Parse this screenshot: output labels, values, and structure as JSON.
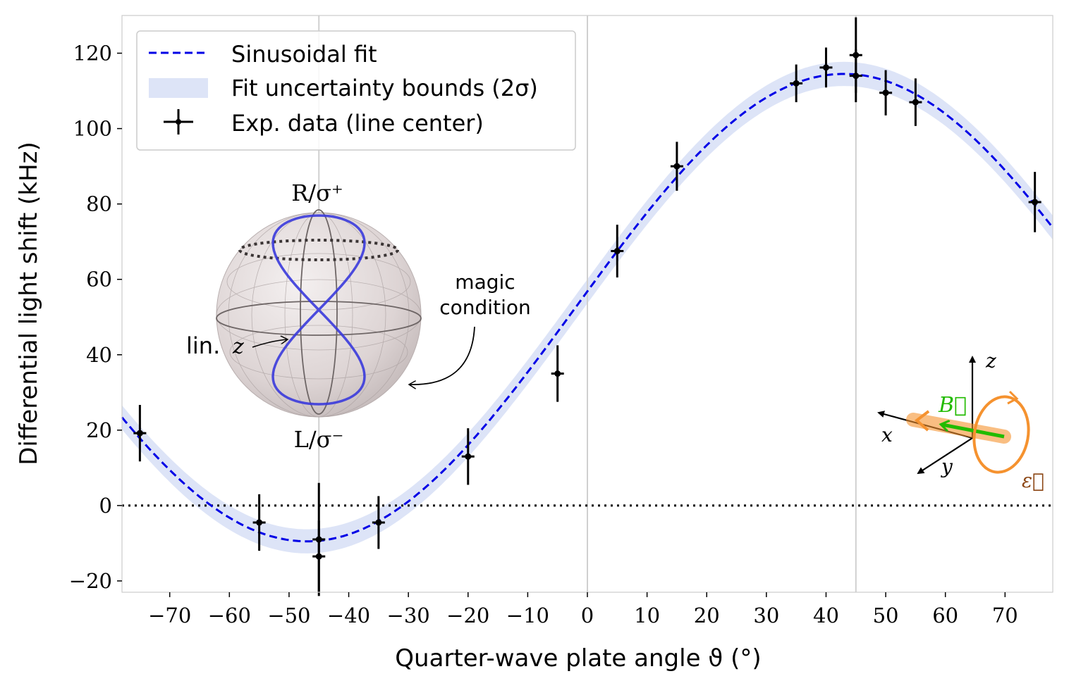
{
  "chart_data": {
    "type": "scatter",
    "xlabel": "Quarter-wave plate angle ϑ (°)",
    "ylabel": "Differential light shift (kHz)",
    "xlim": [
      -78,
      78
    ],
    "ylim": [
      -23,
      130
    ],
    "xticks": [
      -70,
      -60,
      -50,
      -40,
      -30,
      -20,
      -10,
      0,
      10,
      20,
      30,
      40,
      50,
      60,
      70
    ],
    "yticks": [
      -20,
      0,
      20,
      40,
      60,
      80,
      100,
      120
    ],
    "xtick_labels": [
      "−70",
      "−60",
      "−50",
      "−40",
      "−30",
      "−20",
      "−10",
      "0",
      "10",
      "20",
      "30",
      "40",
      "50",
      "60",
      "70"
    ],
    "ytick_labels": [
      "−20",
      "0",
      "20",
      "40",
      "60",
      "80",
      "100",
      "120"
    ],
    "vertical_reference_lines": [
      -45,
      0,
      45
    ],
    "horizontal_reference_line": 0,
    "grid": false,
    "legend_position": "top-left",
    "legend": [
      {
        "label": "Sinusoidal fit",
        "style": "dashed-line",
        "color": "#0000e6"
      },
      {
        "label": "Fit uncertainty bounds (2σ)",
        "style": "band",
        "color": "#dde4f7"
      },
      {
        "label": "Exp. data (line center)",
        "style": "errorbar",
        "color": "#000000"
      }
    ],
    "fit": {
      "model": "sinusoid",
      "offset": 52.5,
      "amplitude": 62,
      "phase_deg": -2,
      "period_deg": 180,
      "band_halfwidth": 3.2
    },
    "series": [
      {
        "name": "Exp. data (line center)",
        "points": [
          {
            "x": -75,
            "y": 19.2,
            "err": 7.5
          },
          {
            "x": -55,
            "y": -4.5,
            "err": 7.5
          },
          {
            "x": -45,
            "y": -9.0,
            "err": 15.0
          },
          {
            "x": -45,
            "y": -13.5,
            "err": 9.5
          },
          {
            "x": -35,
            "y": -4.5,
            "err": 7.0
          },
          {
            "x": -20,
            "y": 13.0,
            "err": 7.5
          },
          {
            "x": -5,
            "y": 35.0,
            "err": 7.5
          },
          {
            "x": 5,
            "y": 67.5,
            "err": 7.0
          },
          {
            "x": 15,
            "y": 90.0,
            "err": 6.5
          },
          {
            "x": 35,
            "y": 112.0,
            "err": 5.0
          },
          {
            "x": 40,
            "y": 116.2,
            "err": 5.3
          },
          {
            "x": 45,
            "y": 119.5,
            "err": 10.0
          },
          {
            "x": 45,
            "y": 114.0,
            "err": 7.0
          },
          {
            "x": 50,
            "y": 109.5,
            "err": 6.0
          },
          {
            "x": 55,
            "y": 107.0,
            "err": 6.3
          },
          {
            "x": 75,
            "y": 80.5,
            "err": 8.0
          }
        ]
      }
    ],
    "annotations": {
      "poincare_top": "R/σ⁺",
      "poincare_bottom": "L/σ⁻",
      "poincare_left_prefix": "lin.",
      "poincare_left_var": "z",
      "magic_line1": "magic",
      "magic_line2": "condition",
      "axis_z": "z",
      "axis_x": "x",
      "axis_y": "y",
      "b_field": "B⃗",
      "polarization": "ε⃗"
    },
    "colors": {
      "fit": "#0000e6",
      "band": "#dde4f7",
      "data": "#000000",
      "b_field": "#22bb00",
      "polarization": "#f5922f",
      "polarization_label": "#8b4513",
      "sphere_curve": "#3a3adb"
    }
  }
}
